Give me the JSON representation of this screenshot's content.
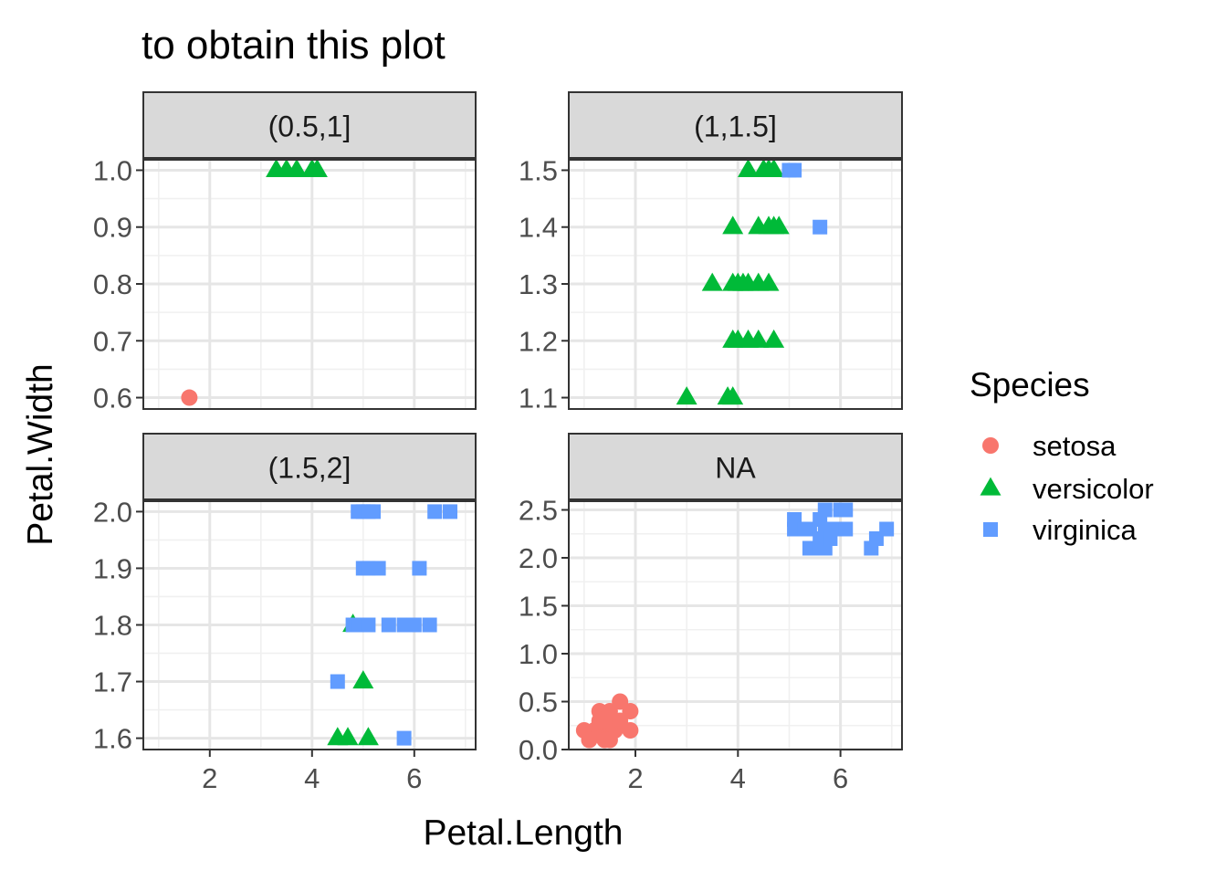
{
  "chart_data": {
    "type": "scatter",
    "title": "to obtain this plot",
    "xlabel": "Petal.Length",
    "ylabel": "Petal.Width",
    "legend": {
      "title": "Species",
      "placement": "right",
      "entries": [
        {
          "name": "setosa",
          "color": "#F8766D",
          "shape": "circle"
        },
        {
          "name": "versicolor",
          "color": "#00BA38",
          "shape": "triangle"
        },
        {
          "name": "virginica",
          "color": "#619CFF",
          "shape": "square"
        }
      ]
    },
    "grid": true,
    "facet_layout": "2x2",
    "facets": [
      {
        "label": "(0.5,1]",
        "xlim": [
          0.7,
          7.2
        ],
        "ylim": [
          0.58,
          1.02
        ],
        "xticks": [
          2,
          4,
          6
        ],
        "yticks": [
          0.6,
          0.7,
          0.8,
          0.9,
          1.0
        ],
        "yticklabels": [
          "0.6",
          "0.7",
          "0.8",
          "0.9",
          "1.0"
        ],
        "points": [
          {
            "species": "setosa",
            "x": 1.6,
            "y": 0.6
          },
          {
            "species": "versicolor",
            "x": 3.3,
            "y": 1.0
          },
          {
            "species": "versicolor",
            "x": 3.5,
            "y": 1.0
          },
          {
            "species": "versicolor",
            "x": 3.7,
            "y": 1.0
          },
          {
            "species": "versicolor",
            "x": 4.0,
            "y": 1.0
          },
          {
            "species": "versicolor",
            "x": 4.1,
            "y": 1.0
          }
        ]
      },
      {
        "label": "(1,1.5]",
        "xlim": [
          0.7,
          7.2
        ],
        "ylim": [
          1.08,
          1.52
        ],
        "xticks": [
          2,
          4,
          6
        ],
        "yticks": [
          1.1,
          1.2,
          1.3,
          1.4,
          1.5
        ],
        "yticklabels": [
          "1.1",
          "1.2",
          "1.3",
          "1.4",
          "1.5"
        ],
        "points": [
          {
            "species": "versicolor",
            "x": 4.2,
            "y": 1.5
          },
          {
            "species": "versicolor",
            "x": 4.5,
            "y": 1.5
          },
          {
            "species": "versicolor",
            "x": 4.6,
            "y": 1.5
          },
          {
            "species": "versicolor",
            "x": 4.7,
            "y": 1.5
          },
          {
            "species": "virginica",
            "x": 5.0,
            "y": 1.5
          },
          {
            "species": "virginica",
            "x": 5.1,
            "y": 1.5
          },
          {
            "species": "versicolor",
            "x": 3.9,
            "y": 1.4
          },
          {
            "species": "versicolor",
            "x": 4.4,
            "y": 1.4
          },
          {
            "species": "versicolor",
            "x": 4.6,
            "y": 1.4
          },
          {
            "species": "versicolor",
            "x": 4.7,
            "y": 1.4
          },
          {
            "species": "versicolor",
            "x": 4.8,
            "y": 1.4
          },
          {
            "species": "virginica",
            "x": 5.6,
            "y": 1.4
          },
          {
            "species": "versicolor",
            "x": 3.5,
            "y": 1.3
          },
          {
            "species": "versicolor",
            "x": 3.9,
            "y": 1.3
          },
          {
            "species": "versicolor",
            "x": 4.0,
            "y": 1.3
          },
          {
            "species": "versicolor",
            "x": 4.1,
            "y": 1.3
          },
          {
            "species": "versicolor",
            "x": 4.2,
            "y": 1.3
          },
          {
            "species": "versicolor",
            "x": 4.4,
            "y": 1.3
          },
          {
            "species": "versicolor",
            "x": 4.6,
            "y": 1.3
          },
          {
            "species": "versicolor",
            "x": 3.9,
            "y": 1.2
          },
          {
            "species": "versicolor",
            "x": 4.0,
            "y": 1.2
          },
          {
            "species": "versicolor",
            "x": 4.2,
            "y": 1.2
          },
          {
            "species": "versicolor",
            "x": 4.4,
            "y": 1.2
          },
          {
            "species": "versicolor",
            "x": 4.7,
            "y": 1.2
          },
          {
            "species": "versicolor",
            "x": 3.0,
            "y": 1.1
          },
          {
            "species": "versicolor",
            "x": 3.8,
            "y": 1.1
          },
          {
            "species": "versicolor",
            "x": 3.9,
            "y": 1.1
          }
        ]
      },
      {
        "label": "(1.5,2]",
        "xlim": [
          0.7,
          7.2
        ],
        "ylim": [
          1.58,
          2.02
        ],
        "xticks": [
          2,
          4,
          6
        ],
        "yticks": [
          1.6,
          1.7,
          1.8,
          1.9,
          2.0
        ],
        "yticklabels": [
          "1.6",
          "1.7",
          "1.8",
          "1.9",
          "2.0"
        ],
        "points": [
          {
            "species": "virginica",
            "x": 4.9,
            "y": 2.0
          },
          {
            "species": "virginica",
            "x": 5.0,
            "y": 2.0
          },
          {
            "species": "virginica",
            "x": 5.1,
            "y": 2.0
          },
          {
            "species": "virginica",
            "x": 5.2,
            "y": 2.0
          },
          {
            "species": "virginica",
            "x": 6.4,
            "y": 2.0
          },
          {
            "species": "virginica",
            "x": 6.7,
            "y": 2.0
          },
          {
            "species": "virginica",
            "x": 5.0,
            "y": 1.9
          },
          {
            "species": "virginica",
            "x": 5.1,
            "y": 1.9
          },
          {
            "species": "virginica",
            "x": 5.3,
            "y": 1.9
          },
          {
            "species": "virginica",
            "x": 6.1,
            "y": 1.9
          },
          {
            "species": "versicolor",
            "x": 4.8,
            "y": 1.8
          },
          {
            "species": "virginica",
            "x": 4.8,
            "y": 1.8
          },
          {
            "species": "virginica",
            "x": 4.9,
            "y": 1.8
          },
          {
            "species": "virginica",
            "x": 5.1,
            "y": 1.8
          },
          {
            "species": "virginica",
            "x": 5.5,
            "y": 1.8
          },
          {
            "species": "virginica",
            "x": 5.8,
            "y": 1.8
          },
          {
            "species": "virginica",
            "x": 6.0,
            "y": 1.8
          },
          {
            "species": "virginica",
            "x": 6.3,
            "y": 1.8
          },
          {
            "species": "virginica",
            "x": 4.5,
            "y": 1.7
          },
          {
            "species": "versicolor",
            "x": 5.0,
            "y": 1.7
          },
          {
            "species": "versicolor",
            "x": 4.5,
            "y": 1.6
          },
          {
            "species": "versicolor",
            "x": 4.7,
            "y": 1.6
          },
          {
            "species": "versicolor",
            "x": 5.1,
            "y": 1.6
          },
          {
            "species": "virginica",
            "x": 5.8,
            "y": 1.6
          }
        ]
      },
      {
        "label": "NA",
        "xlim": [
          0.7,
          7.2
        ],
        "ylim": [
          0.0,
          2.6
        ],
        "xticks": [
          2,
          4,
          6
        ],
        "yticks": [
          0.0,
          0.5,
          1.0,
          1.5,
          2.0,
          2.5
        ],
        "yticklabels": [
          "0.0",
          "0.5",
          "1.0",
          "1.5",
          "2.0",
          "2.5"
        ],
        "points": [
          {
            "species": "setosa",
            "x": 1.0,
            "y": 0.2
          },
          {
            "species": "setosa",
            "x": 1.2,
            "y": 0.2
          },
          {
            "species": "setosa",
            "x": 1.3,
            "y": 0.2
          },
          {
            "species": "setosa",
            "x": 1.4,
            "y": 0.2
          },
          {
            "species": "setosa",
            "x": 1.5,
            "y": 0.2
          },
          {
            "species": "setosa",
            "x": 1.6,
            "y": 0.2
          },
          {
            "species": "setosa",
            "x": 1.9,
            "y": 0.2
          },
          {
            "species": "setosa",
            "x": 1.1,
            "y": 0.1
          },
          {
            "species": "setosa",
            "x": 1.4,
            "y": 0.1
          },
          {
            "species": "setosa",
            "x": 1.5,
            "y": 0.1
          },
          {
            "species": "setosa",
            "x": 1.3,
            "y": 0.3
          },
          {
            "species": "setosa",
            "x": 1.4,
            "y": 0.3
          },
          {
            "species": "setosa",
            "x": 1.7,
            "y": 0.3
          },
          {
            "species": "setosa",
            "x": 1.3,
            "y": 0.4
          },
          {
            "species": "setosa",
            "x": 1.5,
            "y": 0.4
          },
          {
            "species": "setosa",
            "x": 1.9,
            "y": 0.4
          },
          {
            "species": "setosa",
            "x": 1.7,
            "y": 0.5
          },
          {
            "species": "virginica",
            "x": 5.1,
            "y": 2.3
          },
          {
            "species": "virginica",
            "x": 5.1,
            "y": 2.4
          },
          {
            "species": "virginica",
            "x": 5.3,
            "y": 2.3
          },
          {
            "species": "virginica",
            "x": 5.4,
            "y": 2.1
          },
          {
            "species": "virginica",
            "x": 5.4,
            "y": 2.3
          },
          {
            "species": "virginica",
            "x": 5.6,
            "y": 2.1
          },
          {
            "species": "virginica",
            "x": 5.6,
            "y": 2.2
          },
          {
            "species": "virginica",
            "x": 5.6,
            "y": 2.4
          },
          {
            "species": "virginica",
            "x": 5.7,
            "y": 2.1
          },
          {
            "species": "virginica",
            "x": 5.7,
            "y": 2.3
          },
          {
            "species": "virginica",
            "x": 5.7,
            "y": 2.5
          },
          {
            "species": "virginica",
            "x": 5.8,
            "y": 2.2
          },
          {
            "species": "virginica",
            "x": 5.9,
            "y": 2.3
          },
          {
            "species": "virginica",
            "x": 6.0,
            "y": 2.5
          },
          {
            "species": "virginica",
            "x": 6.1,
            "y": 2.3
          },
          {
            "species": "virginica",
            "x": 6.1,
            "y": 2.5
          },
          {
            "species": "virginica",
            "x": 6.6,
            "y": 2.1
          },
          {
            "species": "virginica",
            "x": 6.7,
            "y": 2.2
          },
          {
            "species": "virginica",
            "x": 6.9,
            "y": 2.3
          }
        ]
      }
    ]
  }
}
